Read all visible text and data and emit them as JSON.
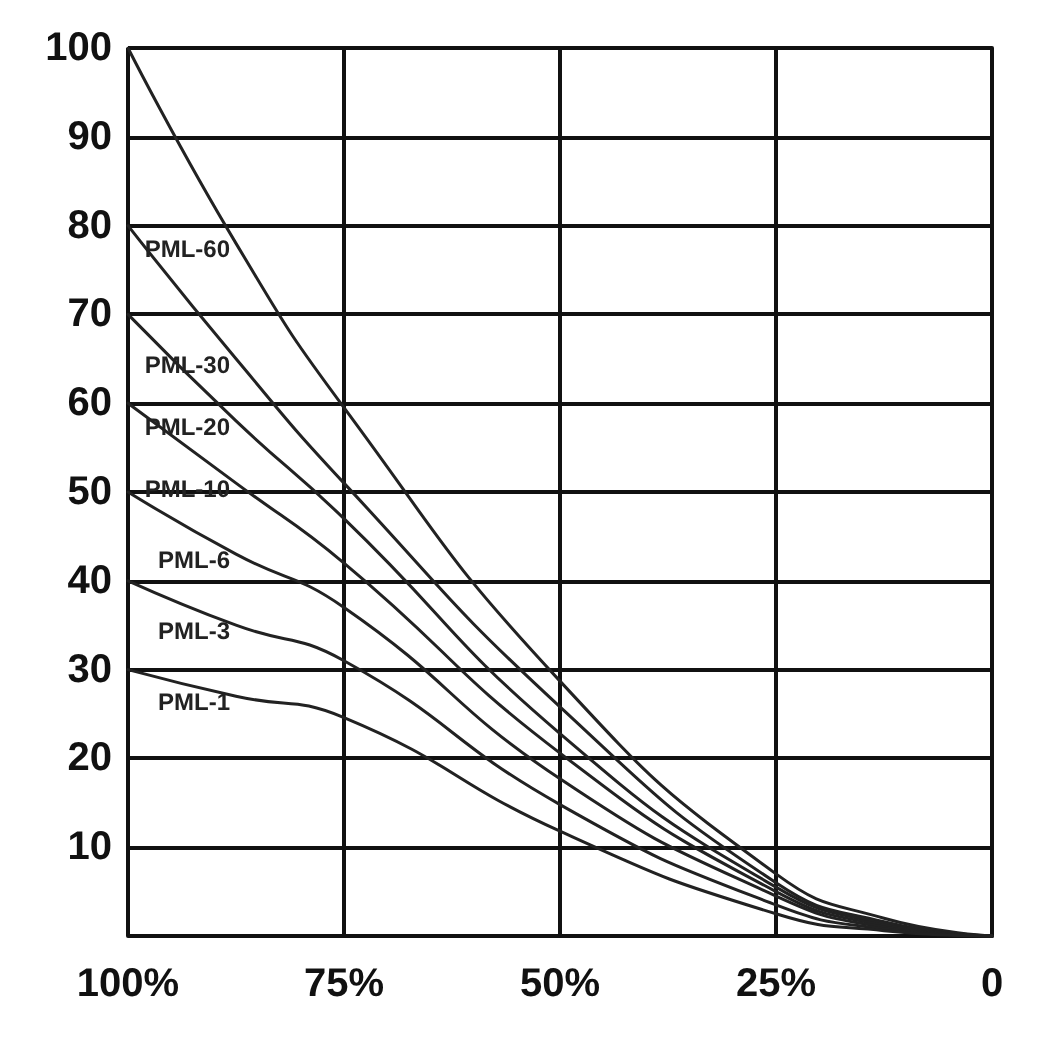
{
  "chart_data": {
    "type": "line",
    "x": [
      100,
      87.5,
      75,
      50,
      25,
      12.5,
      0
    ],
    "series": [
      {
        "name": "PML-60",
        "color": "#222222",
        "values": [
          100,
          78,
          59.5,
          28.7,
          7,
          2,
          0
        ]
      },
      {
        "name": "PML-30",
        "color": "#222222",
        "values": [
          80,
          65,
          51,
          25.8,
          6,
          1.6,
          0
        ]
      },
      {
        "name": "PML-20",
        "color": "#222222",
        "values": [
          70,
          58,
          47,
          22.8,
          5.5,
          1.4,
          0
        ]
      },
      {
        "name": "PML-10",
        "color": "#222222",
        "values": [
          60,
          51,
          42,
          20.6,
          5,
          1.2,
          0
        ]
      },
      {
        "name": "PML-6",
        "color": "#222222",
        "values": [
          50,
          43,
          37,
          17.7,
          4.5,
          1,
          0
        ]
      },
      {
        "name": "PML-3",
        "color": "#222222",
        "values": [
          40,
          35,
          31,
          14.8,
          3.5,
          0.8,
          0
        ]
      },
      {
        "name": "PML-1",
        "color": "#222222",
        "values": [
          30,
          27,
          24.6,
          11.8,
          2.5,
          0.6,
          0
        ]
      }
    ],
    "xlim": [
      100,
      0
    ],
    "xticks": [
      {
        "value": 100,
        "label": "100%"
      },
      {
        "value": 75,
        "label": "75%"
      },
      {
        "value": 50,
        "label": "50%"
      },
      {
        "value": 25,
        "label": "25%"
      },
      0
    ],
    "ylim": [
      0,
      100
    ],
    "yticks": [
      10,
      20,
      30,
      40,
      50,
      60,
      70,
      80,
      90,
      100
    ],
    "grid": true,
    "legend": false,
    "marker": "none",
    "line_style": "solid"
  }
}
